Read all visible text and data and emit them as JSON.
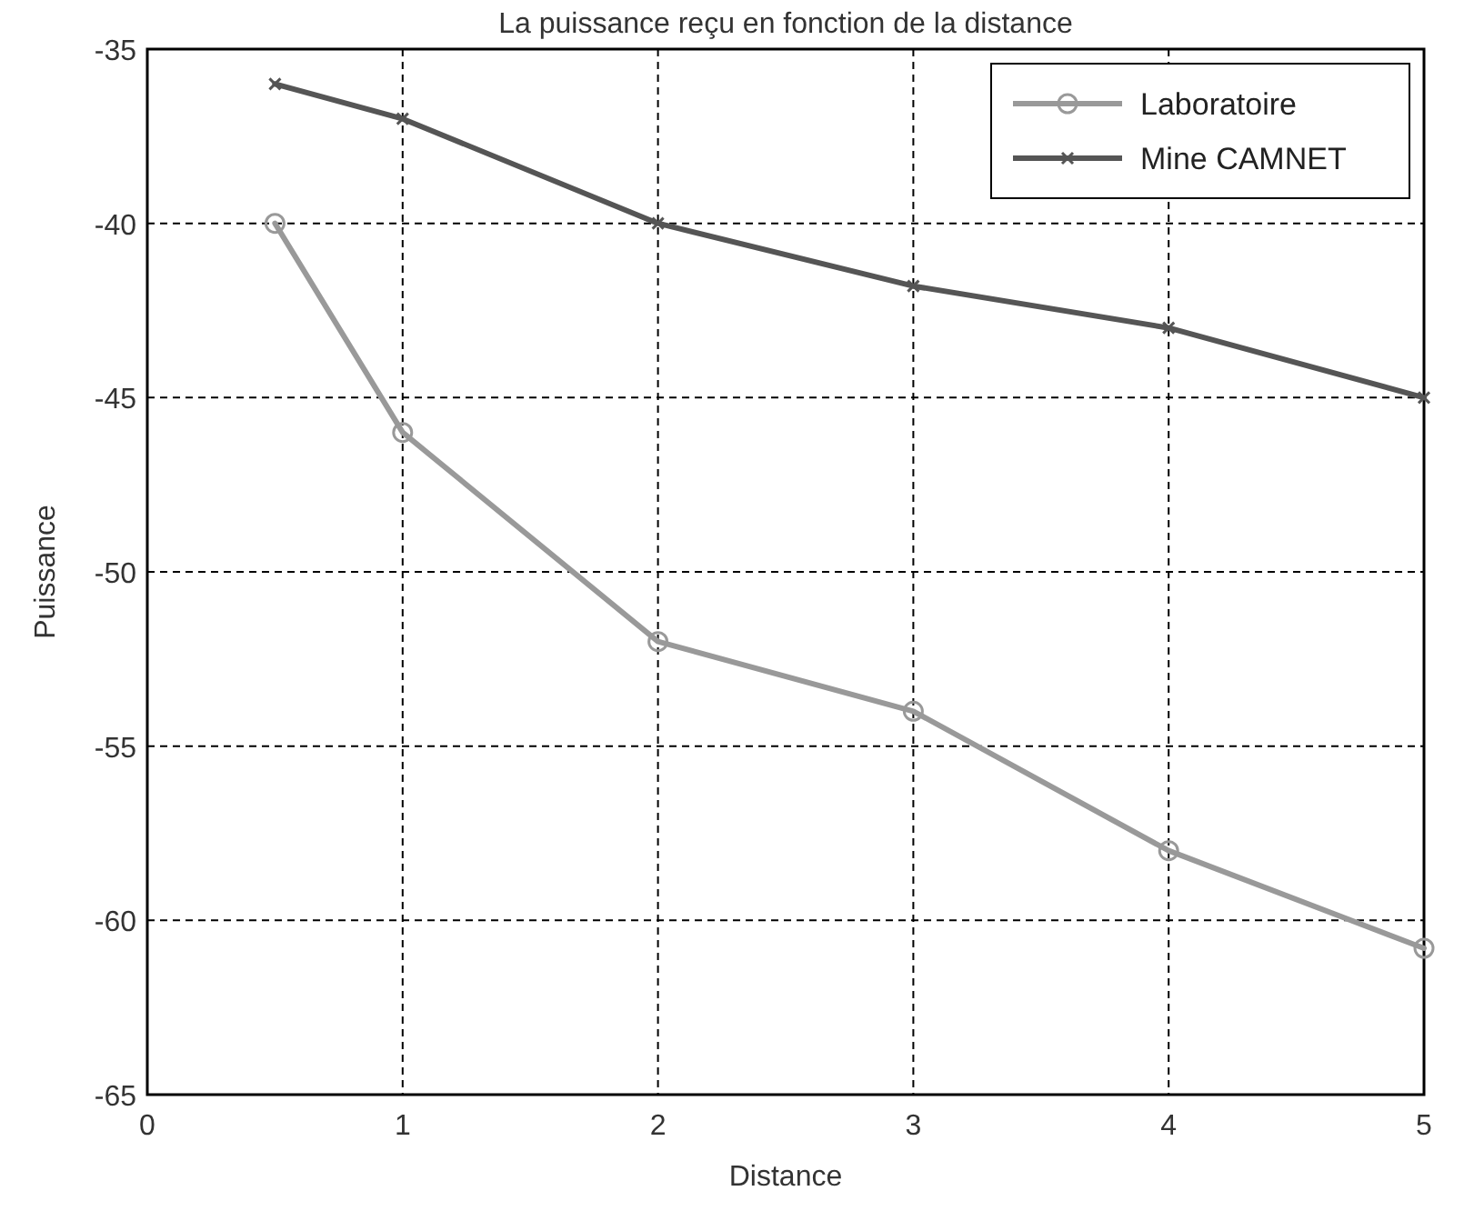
{
  "chart_data": {
    "type": "line",
    "title": "La puissance reçu en fonction de la distance",
    "xlabel": "Distance",
    "ylabel": "Puissance",
    "x": [
      0.5,
      1,
      2,
      3,
      4,
      5
    ],
    "series": [
      {
        "name": "Laboratoire",
        "color": "#999999",
        "values": [
          -40,
          -46,
          -52,
          -54,
          -58,
          -60.8
        ],
        "marker": "circle"
      },
      {
        "name": "Mine CAMNET",
        "color": "#555555",
        "values": [
          -36,
          -37,
          -40,
          -41.8,
          -43,
          -45
        ],
        "marker": "cross"
      }
    ],
    "xlim": [
      0,
      5
    ],
    "ylim": [
      -65,
      -35
    ],
    "xticks": [
      0,
      1,
      2,
      3,
      4,
      5
    ],
    "yticks": [
      -65,
      -60,
      -55,
      -50,
      -45,
      -40,
      -35
    ],
    "grid": true,
    "legend": "top right",
    "line_style": "solid"
  }
}
